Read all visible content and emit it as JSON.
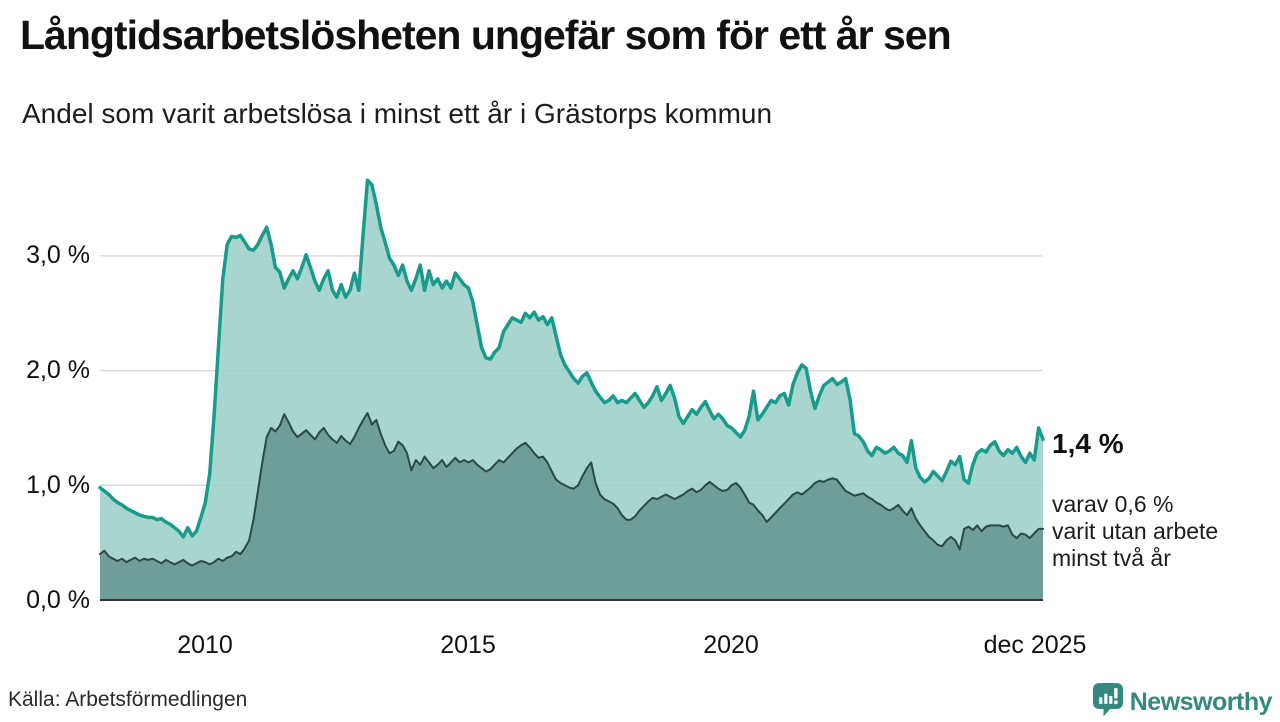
{
  "header": {
    "title": "Långtidsarbetslösheten ungefär som för ett år sen",
    "subtitle": "Andel som varit arbetslösa i minst ett år i Grästorps kommun"
  },
  "annotations": {
    "latest_total": "1,4 %",
    "latest_two_years": "varav 0,6 %\nvarit utan arbete\nminst två år"
  },
  "footer": {
    "source": "Källa: Arbetsförmedlingen",
    "brand": "Newsworthy",
    "brand_icon": "speech-bubble-bar-chart"
  },
  "colors": {
    "line_total": "#189a8d",
    "fill_total": "#99cfc6",
    "line_two_years": "#2b4944",
    "fill_two_years": "#6f9d97",
    "gridline": "#d9d9d9",
    "axis": "#333333",
    "brand_teal": "#33897d",
    "text": "#111111"
  },
  "chart_data": {
    "type": "area",
    "title": "Långtidsarbetslösheten ungefär som för ett år sen",
    "subtitle": "Andel som varit arbetslösa i minst ett år i Grästorps kommun",
    "x_start_year": 2008,
    "x_end_label": "dec 2025",
    "x_step": "month",
    "ylim": [
      0,
      3.75
    ],
    "grid": true,
    "legend_position": "none",
    "y_ticks": [
      {
        "label": "0,0 %",
        "value": 0.0
      },
      {
        "label": "1,0 %",
        "value": 1.0
      },
      {
        "label": "2,0 %",
        "value": 2.0
      },
      {
        "label": "3,0 %",
        "value": 3.0
      }
    ],
    "x_ticks": [
      {
        "label": "2010",
        "year": 2010.0
      },
      {
        "label": "2015",
        "year": 2015.0
      },
      {
        "label": "2020",
        "year": 2020.0
      },
      {
        "label": "dec 2025",
        "year": 2025.92
      }
    ],
    "series": [
      {
        "name": "Andel arbetslösa minst ett år",
        "latest_value": 1.4,
        "color": "#189a8d",
        "fill": "#99cfc6",
        "fill_opacity": 0.85,
        "stroke_width": 3.5,
        "values": [
          0.98,
          0.95,
          0.92,
          0.88,
          0.85,
          0.83,
          0.8,
          0.78,
          0.76,
          0.74,
          0.73,
          0.72,
          0.72,
          0.7,
          0.71,
          0.68,
          0.66,
          0.63,
          0.6,
          0.55,
          0.63,
          0.56,
          0.6,
          0.72,
          0.85,
          1.1,
          1.6,
          2.2,
          2.8,
          3.1,
          3.17,
          3.16,
          3.18,
          3.12,
          3.06,
          3.05,
          3.1,
          3.18,
          3.25,
          3.1,
          2.9,
          2.86,
          2.72,
          2.8,
          2.87,
          2.8,
          2.9,
          3.01,
          2.9,
          2.78,
          2.7,
          2.8,
          2.87,
          2.7,
          2.64,
          2.75,
          2.64,
          2.7,
          2.85,
          2.7,
          3.2,
          3.66,
          3.62,
          3.45,
          3.25,
          3.12,
          2.98,
          2.92,
          2.83,
          2.92,
          2.78,
          2.7,
          2.8,
          2.92,
          2.7,
          2.87,
          2.75,
          2.8,
          2.72,
          2.78,
          2.72,
          2.85,
          2.8,
          2.75,
          2.72,
          2.6,
          2.4,
          2.2,
          2.11,
          2.1,
          2.16,
          2.2,
          2.34,
          2.4,
          2.46,
          2.44,
          2.42,
          2.5,
          2.46,
          2.51,
          2.44,
          2.47,
          2.4,
          2.46,
          2.3,
          2.14,
          2.05,
          1.99,
          1.93,
          1.89,
          1.95,
          1.98,
          1.9,
          1.82,
          1.77,
          1.72,
          1.74,
          1.78,
          1.72,
          1.74,
          1.72,
          1.76,
          1.8,
          1.74,
          1.68,
          1.72,
          1.78,
          1.86,
          1.74,
          1.8,
          1.87,
          1.76,
          1.6,
          1.54,
          1.6,
          1.66,
          1.62,
          1.68,
          1.73,
          1.65,
          1.58,
          1.62,
          1.58,
          1.52,
          1.5,
          1.46,
          1.42,
          1.48,
          1.6,
          1.82,
          1.57,
          1.62,
          1.68,
          1.74,
          1.72,
          1.78,
          1.8,
          1.7,
          1.88,
          1.98,
          2.05,
          2.02,
          1.82,
          1.67,
          1.78,
          1.87,
          1.9,
          1.93,
          1.88,
          1.9,
          1.93,
          1.75,
          1.45,
          1.43,
          1.38,
          1.3,
          1.26,
          1.33,
          1.31,
          1.28,
          1.3,
          1.33,
          1.28,
          1.26,
          1.2,
          1.39,
          1.15,
          1.07,
          1.03,
          1.06,
          1.12,
          1.08,
          1.04,
          1.12,
          1.21,
          1.18,
          1.25,
          1.05,
          1.02,
          1.18,
          1.28,
          1.31,
          1.29,
          1.35,
          1.38,
          1.3,
          1.26,
          1.31,
          1.28,
          1.33,
          1.25,
          1.2,
          1.28,
          1.22,
          1.5,
          1.4
        ]
      },
      {
        "name": "Andel arbetslösa minst två år",
        "latest_value": 0.6,
        "color": "#2b4944",
        "fill": "#6f9d97",
        "fill_opacity": 1,
        "stroke_width": 2,
        "values": [
          0.4,
          0.43,
          0.38,
          0.36,
          0.34,
          0.36,
          0.33,
          0.35,
          0.37,
          0.34,
          0.36,
          0.35,
          0.36,
          0.34,
          0.32,
          0.35,
          0.33,
          0.31,
          0.33,
          0.35,
          0.32,
          0.3,
          0.32,
          0.34,
          0.33,
          0.31,
          0.33,
          0.36,
          0.34,
          0.37,
          0.38,
          0.42,
          0.4,
          0.45,
          0.52,
          0.7,
          0.95,
          1.2,
          1.42,
          1.5,
          1.47,
          1.52,
          1.62,
          1.55,
          1.47,
          1.42,
          1.45,
          1.48,
          1.44,
          1.4,
          1.46,
          1.5,
          1.44,
          1.4,
          1.37,
          1.43,
          1.39,
          1.36,
          1.42,
          1.5,
          1.57,
          1.63,
          1.53,
          1.57,
          1.45,
          1.35,
          1.28,
          1.3,
          1.38,
          1.35,
          1.28,
          1.13,
          1.22,
          1.18,
          1.25,
          1.2,
          1.15,
          1.18,
          1.22,
          1.16,
          1.2,
          1.24,
          1.2,
          1.22,
          1.2,
          1.22,
          1.18,
          1.15,
          1.12,
          1.14,
          1.18,
          1.22,
          1.2,
          1.24,
          1.28,
          1.32,
          1.35,
          1.37,
          1.33,
          1.28,
          1.24,
          1.25,
          1.2,
          1.12,
          1.05,
          1.02,
          1.0,
          0.98,
          0.97,
          1.0,
          1.08,
          1.15,
          1.2,
          1.02,
          0.92,
          0.88,
          0.86,
          0.84,
          0.8,
          0.74,
          0.7,
          0.7,
          0.73,
          0.78,
          0.82,
          0.86,
          0.89,
          0.88,
          0.9,
          0.92,
          0.9,
          0.88,
          0.9,
          0.92,
          0.95,
          0.97,
          0.94,
          0.96,
          1.0,
          1.03,
          1.0,
          0.97,
          0.95,
          0.96,
          1.0,
          1.02,
          0.98,
          0.92,
          0.85,
          0.83,
          0.78,
          0.74,
          0.68,
          0.72,
          0.76,
          0.8,
          0.84,
          0.88,
          0.92,
          0.94,
          0.92,
          0.95,
          0.98,
          1.02,
          1.04,
          1.03,
          1.05,
          1.06,
          1.05,
          1.0,
          0.95,
          0.93,
          0.91,
          0.92,
          0.93,
          0.9,
          0.88,
          0.85,
          0.83,
          0.8,
          0.78,
          0.8,
          0.83,
          0.78,
          0.74,
          0.8,
          0.71,
          0.65,
          0.6,
          0.55,
          0.52,
          0.48,
          0.47,
          0.52,
          0.55,
          0.52,
          0.44,
          0.62,
          0.64,
          0.61,
          0.65,
          0.6,
          0.64,
          0.65,
          0.65,
          0.65,
          0.64,
          0.65,
          0.57,
          0.54,
          0.58,
          0.57,
          0.54,
          0.58,
          0.62,
          0.62
        ]
      }
    ]
  }
}
